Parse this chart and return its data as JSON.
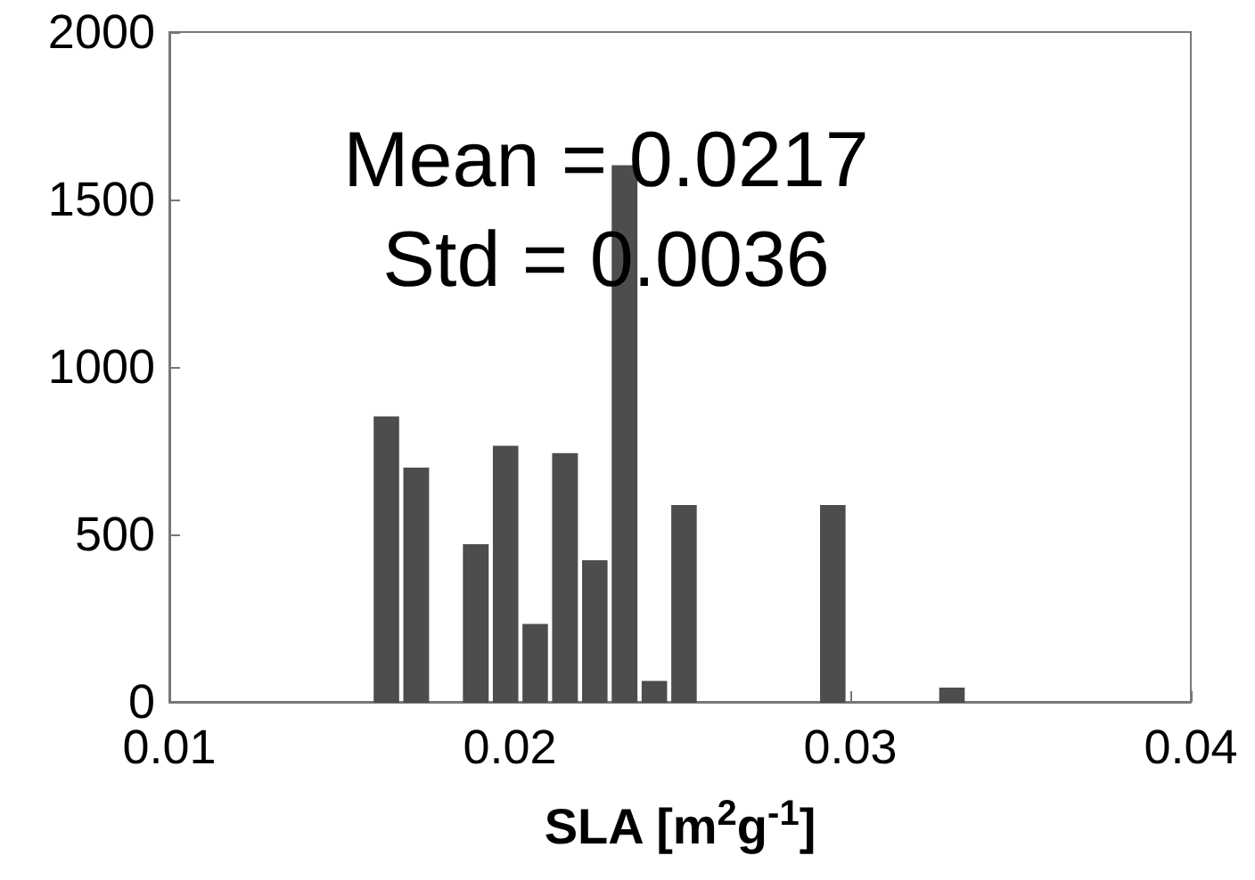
{
  "chart_data": {
    "type": "histogram",
    "xlabel": "SLA [m$^{2}$g$^{-1}$]",
    "annotations": [
      "Mean = 0.0217",
      "Std = 0.0036"
    ],
    "bins": [
      0.01594,
      0.01681,
      0.01769,
      0.01856,
      0.01944,
      0.02031,
      0.02118,
      0.02206,
      0.02293,
      0.02381,
      0.02468,
      0.02555,
      0.02643,
      0.0273,
      0.02818,
      0.02905,
      0.02992,
      0.0308,
      0.03167,
      0.03255,
      0.03342
    ],
    "values": [
      850,
      697,
      0,
      468,
      762,
      230,
      740,
      420,
      1600,
      60,
      585,
      0,
      0,
      0,
      0,
      585,
      0,
      0,
      0,
      40
    ],
    "color": "#4d4d4d",
    "xlim": [
      0.01,
      0.04
    ],
    "xticks": [
      0.01,
      0.02,
      0.03,
      0.04
    ],
    "ylim": [
      0,
      2000
    ],
    "yticks": [
      0,
      500,
      1000,
      1500,
      2000
    ],
    "grid": false
  }
}
